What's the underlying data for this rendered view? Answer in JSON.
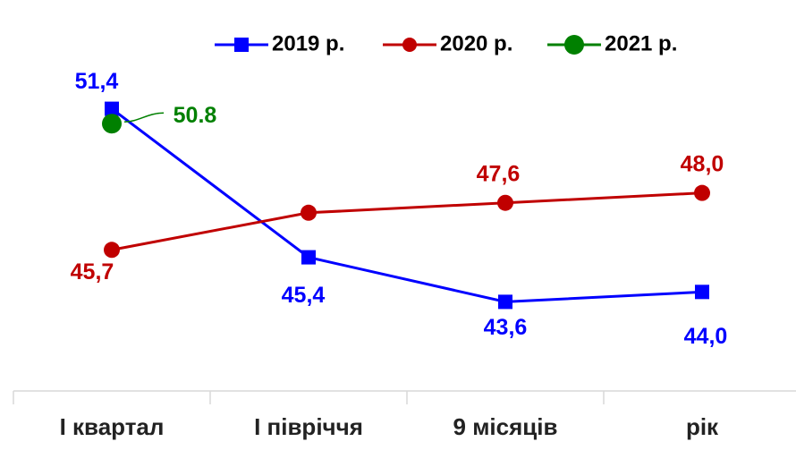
{
  "chart_data": {
    "type": "line",
    "categories": [
      "I квартал",
      "I півріччя",
      "9 місяців",
      "рік"
    ],
    "series": [
      {
        "name": "2019 р.",
        "color": "#0000ff",
        "marker": "square",
        "values": [
          51.4,
          45.4,
          43.6,
          44.0
        ],
        "value_labels": [
          "51,4",
          "45,4",
          "43,6",
          "44,0"
        ]
      },
      {
        "name": "2020 р.",
        "color": "#c00000",
        "marker": "circle",
        "values": [
          45.7,
          47.2,
          47.6,
          48.0
        ],
        "value_labels": [
          "45,7",
          null,
          "47,6",
          "48,0"
        ]
      },
      {
        "name": "2021 р.",
        "color": "#008000",
        "marker": "circle",
        "values": [
          50.8,
          null,
          null,
          null
        ],
        "value_labels": [
          "50.8",
          null,
          null,
          null
        ]
      }
    ],
    "ylim": [
      40,
      55
    ],
    "legend": "top"
  }
}
